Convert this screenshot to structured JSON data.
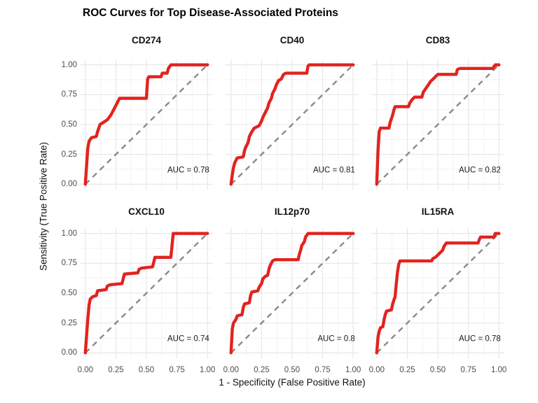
{
  "title": "ROC Curves for Top Disease-Associated Proteins",
  "axes": {
    "x_label": "1 - Specificity (False Positive Rate)",
    "y_label": "Sensitivity (True Positive Rate)",
    "x_tick_labels": [
      "0.00",
      "0.25",
      "0.50",
      "0.75",
      "1.00"
    ],
    "y_tick_labels": [
      "0.00",
      "0.25",
      "0.50",
      "0.75",
      "1.00"
    ],
    "x_ticks": [
      0,
      0.25,
      0.5,
      0.75,
      1
    ],
    "y_ticks": [
      0,
      0.25,
      0.5,
      0.75,
      1
    ],
    "minor_ticks": [
      0.125,
      0.375,
      0.625,
      0.875
    ]
  },
  "colors": {
    "roc_line": "#E2231F",
    "diagonal": "#8A8A8A",
    "grid_major": "#E5E5E5",
    "grid_minor": "#F2F2F2",
    "tick_text": "#4D4D4D",
    "annotation_text": "#1A1A1A"
  },
  "chart_data": {
    "type": "line",
    "layout": "facet-wrap 2 rows x 3 cols",
    "title": "ROC Curves for Top Disease-Associated Proteins",
    "xlabel": "1 - Specificity (False Positive Rate)",
    "ylabel": "Sensitivity (True Positive Rate)",
    "x_range": [
      0,
      1
    ],
    "y_range": [
      0,
      1
    ],
    "grid": "on",
    "legend": "none",
    "diagonal_reference": [
      [
        0,
        0
      ],
      [
        1,
        1
      ]
    ],
    "panels": [
      {
        "title": "CD274",
        "auc": 0.78,
        "auc_label": "AUC = 0.78",
        "roc_points": [
          [
            0,
            0
          ],
          [
            0.02,
            0.3
          ],
          [
            0.03,
            0.36
          ],
          [
            0.05,
            0.39
          ],
          [
            0.09,
            0.4
          ],
          [
            0.1,
            0.44
          ],
          [
            0.12,
            0.5
          ],
          [
            0.15,
            0.52
          ],
          [
            0.18,
            0.54
          ],
          [
            0.21,
            0.58
          ],
          [
            0.23,
            0.62
          ],
          [
            0.25,
            0.66
          ],
          [
            0.27,
            0.7
          ],
          [
            0.28,
            0.72
          ],
          [
            0.5,
            0.72
          ],
          [
            0.51,
            0.88
          ],
          [
            0.52,
            0.9
          ],
          [
            0.62,
            0.9
          ],
          [
            0.63,
            0.93
          ],
          [
            0.67,
            0.93
          ],
          [
            0.68,
            0.97
          ],
          [
            0.7,
            1.0
          ],
          [
            1,
            1
          ]
        ]
      },
      {
        "title": "CD40",
        "auc": 0.81,
        "auc_label": "AUC = 0.81",
        "roc_points": [
          [
            0,
            0
          ],
          [
            0.01,
            0.08
          ],
          [
            0.02,
            0.14
          ],
          [
            0.03,
            0.18
          ],
          [
            0.05,
            0.22
          ],
          [
            0.1,
            0.23
          ],
          [
            0.11,
            0.28
          ],
          [
            0.12,
            0.31
          ],
          [
            0.14,
            0.35
          ],
          [
            0.15,
            0.4
          ],
          [
            0.17,
            0.44
          ],
          [
            0.19,
            0.47
          ],
          [
            0.23,
            0.49
          ],
          [
            0.25,
            0.53
          ],
          [
            0.26,
            0.56
          ],
          [
            0.28,
            0.6
          ],
          [
            0.3,
            0.64
          ],
          [
            0.31,
            0.68
          ],
          [
            0.33,
            0.72
          ],
          [
            0.34,
            0.76
          ],
          [
            0.36,
            0.8
          ],
          [
            0.37,
            0.83
          ],
          [
            0.39,
            0.87
          ],
          [
            0.41,
            0.88
          ],
          [
            0.43,
            0.92
          ],
          [
            0.45,
            0.93
          ],
          [
            0.62,
            0.93
          ],
          [
            0.63,
            0.99
          ],
          [
            0.64,
            1.0
          ],
          [
            1,
            1
          ]
        ]
      },
      {
        "title": "CD83",
        "auc": 0.82,
        "auc_label": "AUC = 0.82",
        "roc_points": [
          [
            0,
            0
          ],
          [
            0.01,
            0.28
          ],
          [
            0.02,
            0.44
          ],
          [
            0.03,
            0.47
          ],
          [
            0.1,
            0.47
          ],
          [
            0.11,
            0.52
          ],
          [
            0.12,
            0.55
          ],
          [
            0.13,
            0.58
          ],
          [
            0.14,
            0.62
          ],
          [
            0.15,
            0.65
          ],
          [
            0.26,
            0.65
          ],
          [
            0.27,
            0.68
          ],
          [
            0.29,
            0.71
          ],
          [
            0.31,
            0.73
          ],
          [
            0.37,
            0.73
          ],
          [
            0.38,
            0.77
          ],
          [
            0.4,
            0.8
          ],
          [
            0.42,
            0.83
          ],
          [
            0.44,
            0.86
          ],
          [
            0.46,
            0.88
          ],
          [
            0.48,
            0.9
          ],
          [
            0.5,
            0.92
          ],
          [
            0.65,
            0.92
          ],
          [
            0.66,
            0.96
          ],
          [
            0.68,
            0.97
          ],
          [
            0.95,
            0.97
          ],
          [
            0.97,
            1.0
          ],
          [
            1,
            1
          ]
        ]
      },
      {
        "title": "CXCL10",
        "auc": 0.74,
        "auc_label": "AUC = 0.74",
        "roc_points": [
          [
            0,
            0
          ],
          [
            0.02,
            0.28
          ],
          [
            0.03,
            0.4
          ],
          [
            0.04,
            0.45
          ],
          [
            0.06,
            0.47
          ],
          [
            0.09,
            0.48
          ],
          [
            0.1,
            0.52
          ],
          [
            0.17,
            0.53
          ],
          [
            0.18,
            0.56
          ],
          [
            0.2,
            0.57
          ],
          [
            0.3,
            0.58
          ],
          [
            0.31,
            0.62
          ],
          [
            0.32,
            0.66
          ],
          [
            0.43,
            0.67
          ],
          [
            0.44,
            0.7
          ],
          [
            0.46,
            0.71
          ],
          [
            0.55,
            0.72
          ],
          [
            0.56,
            0.76
          ],
          [
            0.57,
            0.8
          ],
          [
            0.7,
            0.8
          ],
          [
            0.71,
            0.9
          ],
          [
            0.72,
            1.0
          ],
          [
            1,
            1
          ]
        ]
      },
      {
        "title": "IL12p70",
        "auc": 0.8,
        "auc_label": "AUC = 0.8",
        "roc_points": [
          [
            0,
            0
          ],
          [
            0.01,
            0.2
          ],
          [
            0.02,
            0.25
          ],
          [
            0.04,
            0.28
          ],
          [
            0.05,
            0.31
          ],
          [
            0.09,
            0.32
          ],
          [
            0.1,
            0.38
          ],
          [
            0.11,
            0.41
          ],
          [
            0.15,
            0.42
          ],
          [
            0.16,
            0.48
          ],
          [
            0.17,
            0.51
          ],
          [
            0.22,
            0.52
          ],
          [
            0.23,
            0.55
          ],
          [
            0.25,
            0.58
          ],
          [
            0.26,
            0.62
          ],
          [
            0.28,
            0.64
          ],
          [
            0.3,
            0.65
          ],
          [
            0.31,
            0.7
          ],
          [
            0.32,
            0.73
          ],
          [
            0.34,
            0.77
          ],
          [
            0.36,
            0.78
          ],
          [
            0.55,
            0.78
          ],
          [
            0.56,
            0.83
          ],
          [
            0.57,
            0.86
          ],
          [
            0.58,
            0.9
          ],
          [
            0.6,
            0.93
          ],
          [
            0.61,
            0.97
          ],
          [
            0.63,
            1.0
          ],
          [
            1,
            1
          ]
        ]
      },
      {
        "title": "IL15RA",
        "auc": 0.78,
        "auc_label": "AUC = 0.78",
        "roc_points": [
          [
            0,
            0
          ],
          [
            0.01,
            0.13
          ],
          [
            0.02,
            0.18
          ],
          [
            0.03,
            0.21
          ],
          [
            0.05,
            0.22
          ],
          [
            0.06,
            0.28
          ],
          [
            0.07,
            0.32
          ],
          [
            0.08,
            0.35
          ],
          [
            0.12,
            0.36
          ],
          [
            0.13,
            0.41
          ],
          [
            0.14,
            0.44
          ],
          [
            0.15,
            0.47
          ],
          [
            0.16,
            0.58
          ],
          [
            0.17,
            0.68
          ],
          [
            0.18,
            0.74
          ],
          [
            0.19,
            0.77
          ],
          [
            0.45,
            0.77
          ],
          [
            0.46,
            0.79
          ],
          [
            0.48,
            0.8
          ],
          [
            0.5,
            0.82
          ],
          [
            0.52,
            0.84
          ],
          [
            0.54,
            0.86
          ],
          [
            0.55,
            0.89
          ],
          [
            0.57,
            0.92
          ],
          [
            0.83,
            0.92
          ],
          [
            0.84,
            0.95
          ],
          [
            0.85,
            0.97
          ],
          [
            0.96,
            0.97
          ],
          [
            0.97,
            1.0
          ],
          [
            1,
            1
          ]
        ]
      }
    ]
  }
}
